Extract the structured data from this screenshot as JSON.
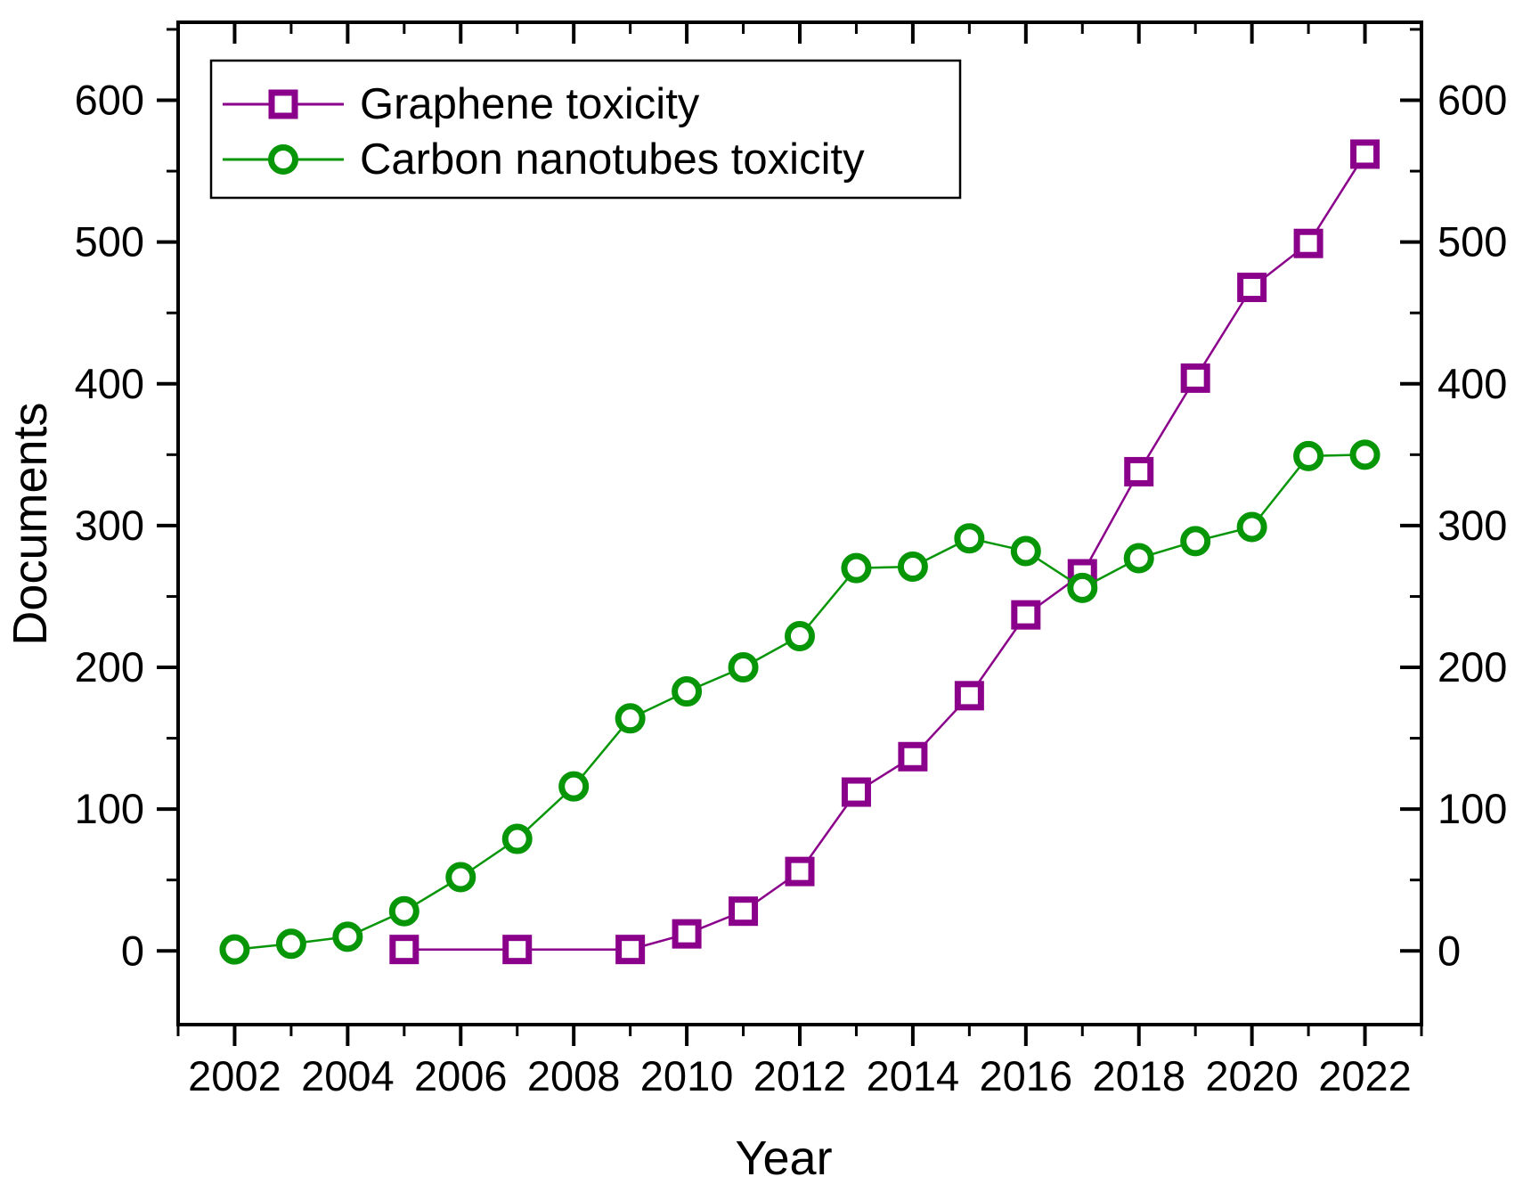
{
  "figure": {
    "background": "#ffffff",
    "frame_color": "#000000"
  },
  "axes": {
    "x": {
      "label": "Year",
      "min": 2001,
      "max": 2023,
      "major_ticks": [
        2002,
        2004,
        2006,
        2008,
        2010,
        2012,
        2014,
        2016,
        2018,
        2020,
        2022
      ],
      "minor_ticks": [
        2001,
        2003,
        2005,
        2007,
        2009,
        2011,
        2013,
        2015,
        2017,
        2019,
        2021,
        2023
      ]
    },
    "y": {
      "label": "Documents",
      "min": -52,
      "max": 655,
      "major_ticks": [
        0,
        100,
        200,
        300,
        400,
        500,
        600
      ],
      "minor_ticks": [
        50,
        150,
        250,
        350,
        450,
        550,
        650
      ],
      "labels_on_right": true
    }
  },
  "legend": {
    "items": [
      {
        "label": "Graphene toxicity",
        "marker": "square",
        "color": "#8B008B"
      },
      {
        "label": "Carbon nanotubes toxicity",
        "marker": "circle",
        "color": "#079607"
      }
    ]
  },
  "chart_data": {
    "type": "line",
    "title": "",
    "xlabel": "Year",
    "ylabel": "Documents",
    "xlim": [
      2001,
      2023
    ],
    "ylim": [
      -52,
      655
    ],
    "grid": false,
    "legend_position": "top-left-inside",
    "x": [
      2002,
      2003,
      2004,
      2005,
      2006,
      2007,
      2008,
      2009,
      2010,
      2011,
      2012,
      2013,
      2014,
      2015,
      2016,
      2017,
      2018,
      2019,
      2020,
      2021,
      2022
    ],
    "series": [
      {
        "name": "Graphene toxicity",
        "color": "#8B008B",
        "marker": "square",
        "values": [
          null,
          null,
          null,
          1,
          null,
          1,
          null,
          1,
          12,
          28,
          56,
          112,
          137,
          180,
          237,
          266,
          338,
          404,
          468,
          499,
          562
        ]
      },
      {
        "name": "Carbon nanotubes toxicity",
        "color": "#079607",
        "marker": "circle",
        "values": [
          1,
          5,
          10,
          28,
          52,
          79,
          116,
          164,
          183,
          200,
          222,
          270,
          271,
          291,
          282,
          256,
          277,
          289,
          299,
          349,
          350
        ]
      }
    ]
  }
}
